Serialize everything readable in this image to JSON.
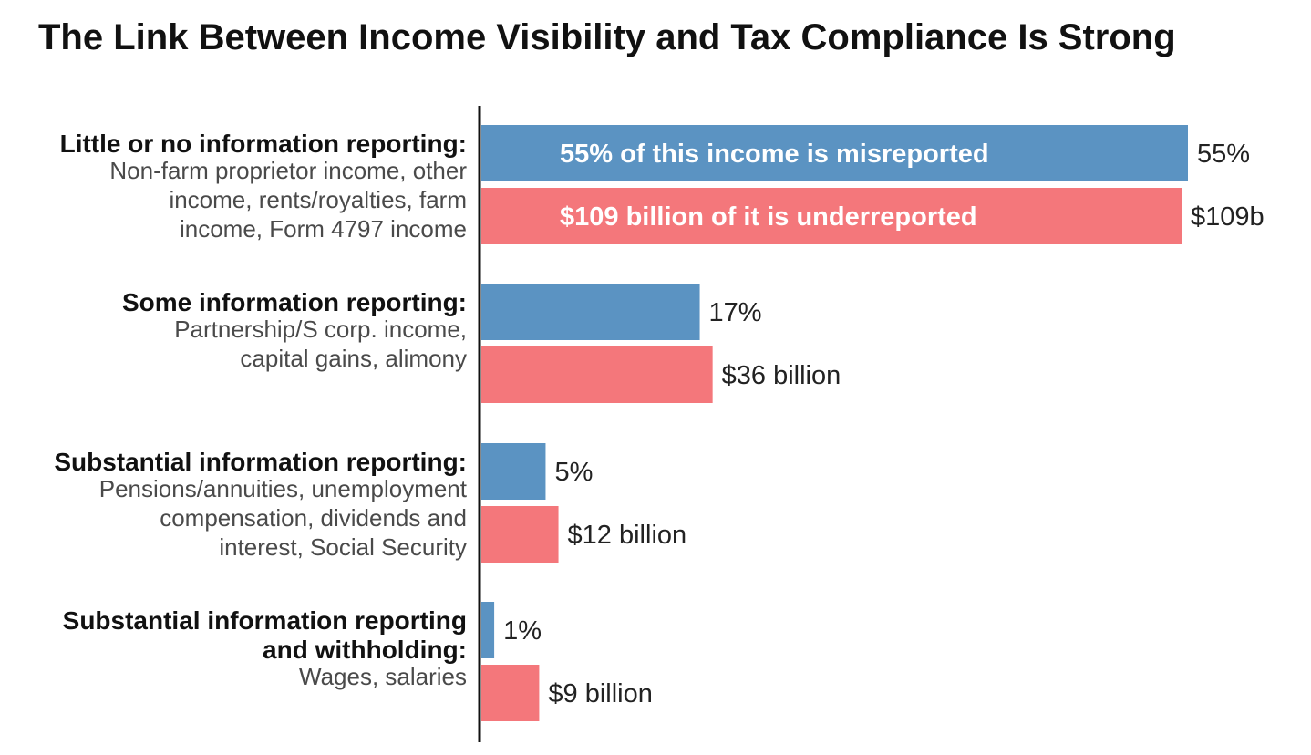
{
  "chart_data": {
    "type": "bar",
    "orientation": "horizontal",
    "title": "The Link Between Income Visibility and Tax Compliance Is Strong",
    "categories": [
      {
        "label_lines": [
          "Little or no information reporting:"
        ],
        "sub_lines": [
          "Non-farm proprietor income, other",
          "income, rents/royalties, farm",
          "income, Form 4797 income"
        ]
      },
      {
        "label_lines": [
          "Some information reporting:"
        ],
        "sub_lines": [
          "Partnership/S corp. income,",
          "capital gains, alimony"
        ]
      },
      {
        "label_lines": [
          "Substantial information reporting:"
        ],
        "sub_lines": [
          "Pensions/annuities, unemployment",
          "compensation, dividends and",
          "interest, Social Security"
        ]
      },
      {
        "label_lines": [
          "Substantial information reporting",
          "and withholding:"
        ],
        "sub_lines": [
          "Wages, salaries"
        ]
      }
    ],
    "series": [
      {
        "key": "misreported_pct",
        "color": "#5b93c2",
        "unit": "%",
        "values": [
          55,
          17,
          5,
          1
        ],
        "value_labels": [
          "55%",
          "17%",
          "5%",
          "1%"
        ],
        "inbar_label": "55% of this income is misreported"
      },
      {
        "key": "underreported_billion",
        "color": "#f4777b",
        "unit": "billion $",
        "values": [
          109,
          36,
          12,
          9
        ],
        "value_labels": [
          "$109b",
          "$36 billion",
          "$12 billion",
          "$9 billion"
        ],
        "inbar_label": "$109 billion of it is underreported"
      }
    ],
    "grid": false,
    "legend": "none"
  }
}
